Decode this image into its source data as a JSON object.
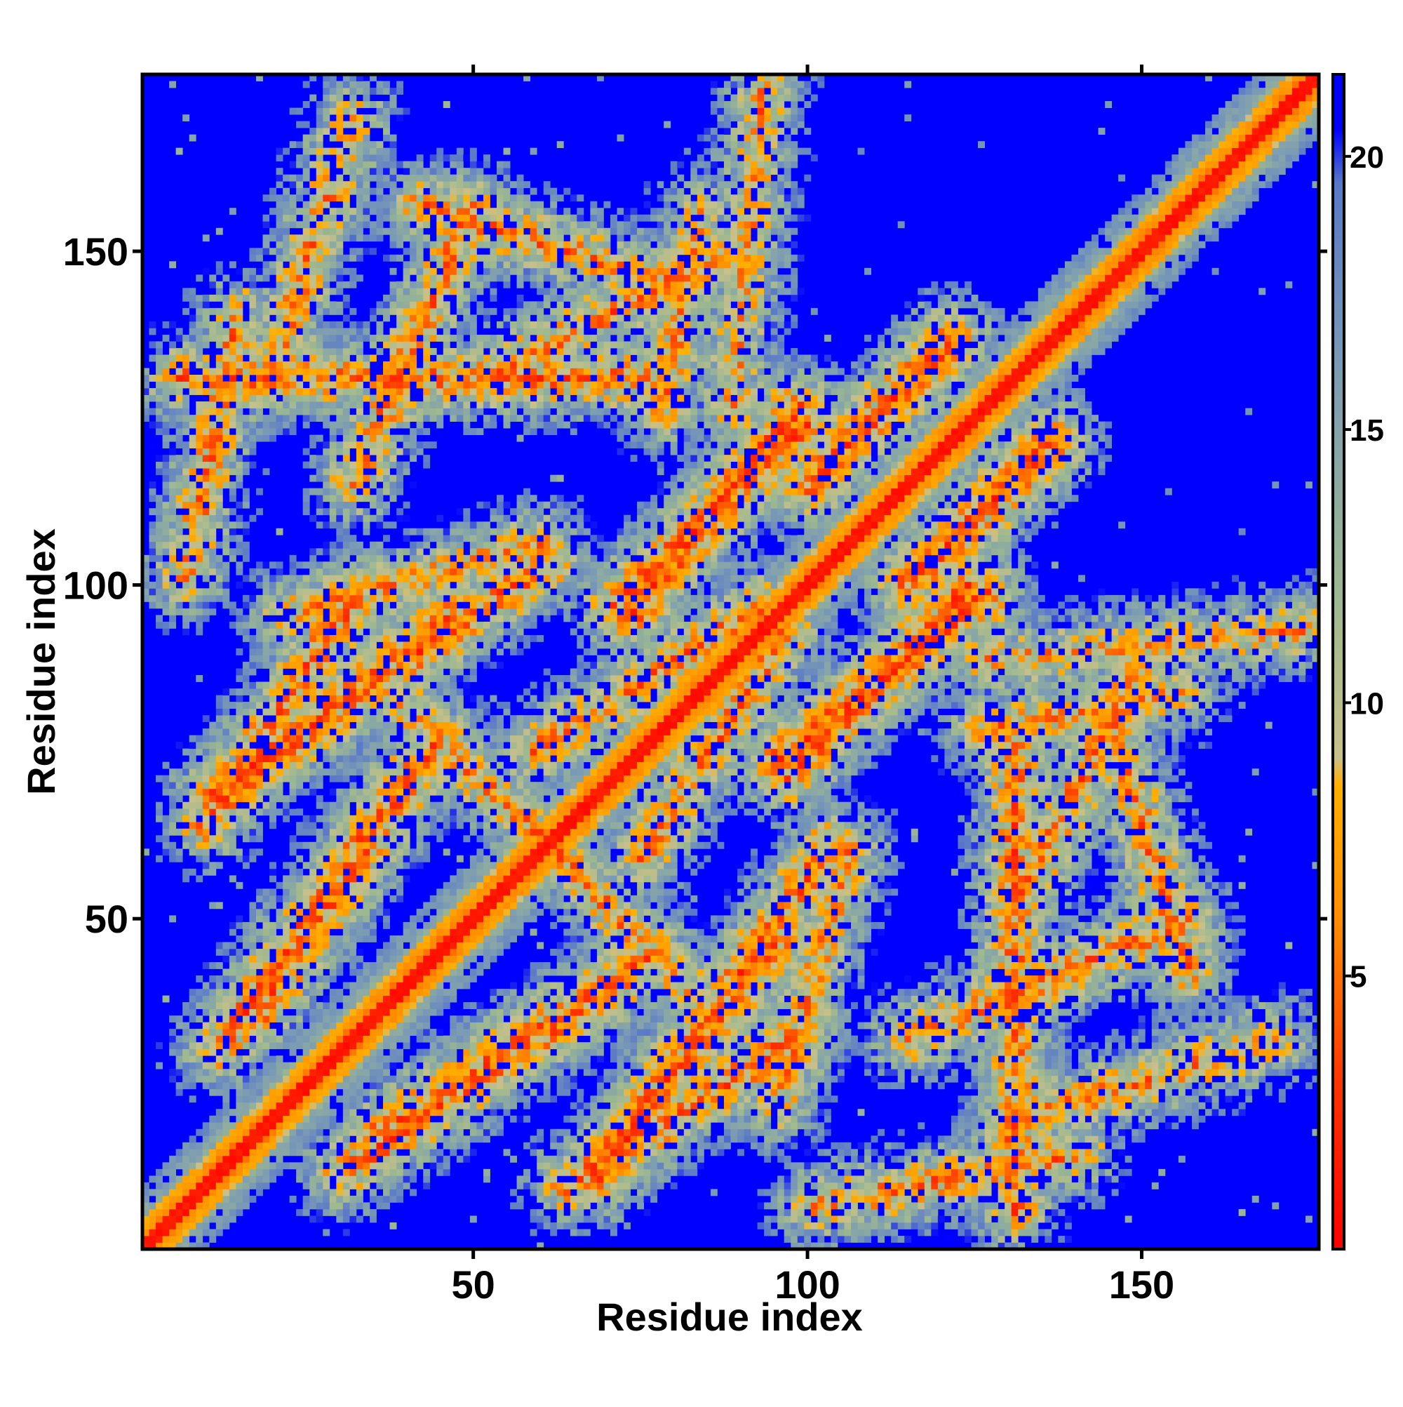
{
  "chart_data": {
    "type": "heatmap",
    "title": "",
    "xlabel": "Residue index",
    "ylabel": "Residue index",
    "x_range": [
      1,
      176
    ],
    "y_range": [
      1,
      176
    ],
    "x_ticks": [
      50,
      100,
      150
    ],
    "x_tick_labels": [
      "50",
      "100",
      "150"
    ],
    "y_ticks": [
      50,
      100,
      150
    ],
    "y_tick_labels": [
      "50",
      "100",
      "150"
    ],
    "grid": false,
    "colorbar": {
      "range": [
        0,
        21.5
      ],
      "ticks": [
        5,
        10,
        15,
        20
      ],
      "tick_labels": [
        "5",
        "10",
        "15",
        "20"
      ],
      "stops": [
        {
          "value": 0,
          "color": "#ff0000"
        },
        {
          "value": 3,
          "color": "#ff3300"
        },
        {
          "value": 6,
          "color": "#ff8c00"
        },
        {
          "value": 8.5,
          "color": "#ffb000"
        },
        {
          "value": 9,
          "color": "#c8c08a"
        },
        {
          "value": 12,
          "color": "#9cb890"
        },
        {
          "value": 16,
          "color": "#7c9cb4"
        },
        {
          "value": 19.5,
          "color": "#5a78c8"
        },
        {
          "value": 20.5,
          "color": "#0000ff"
        }
      ]
    },
    "matrix_description": "Symmetric residue-residue distance map with a red diagonal band (near-zero distance) and off-diagonal contact regions in orange/green, background blue (>20).",
    "contact_features": [
      {
        "center": [
          40,
          130
        ],
        "length": 70,
        "angle": 0.0,
        "strength": 0.8
      },
      {
        "center": [
          35,
          85
        ],
        "length": 60,
        "angle": 0.6,
        "strength": 0.85
      },
      {
        "center": [
          85,
          110
        ],
        "length": 40,
        "angle": 0.9,
        "strength": 0.9
      },
      {
        "center": [
          110,
          125
        ],
        "length": 30,
        "angle": 0.8,
        "strength": 0.9
      },
      {
        "center": [
          60,
          150
        ],
        "length": 40,
        "angle": -0.3,
        "strength": 0.7
      },
      {
        "center": [
          80,
          140
        ],
        "length": 30,
        "angle": 1.4,
        "strength": 0.6
      },
      {
        "center": [
          110,
          85
        ],
        "length": 40,
        "angle": 0.8,
        "strength": 0.9
      },
      {
        "center": [
          125,
          110
        ],
        "length": 30,
        "angle": 0.8,
        "strength": 0.85
      },
      {
        "center": [
          20,
          80
        ],
        "length": 40,
        "angle": 1.0,
        "strength": 0.85
      },
      {
        "center": [
          30,
          55
        ],
        "length": 50,
        "angle": 1.0,
        "strength": 0.8
      },
      {
        "center": [
          50,
          25
        ],
        "length": 50,
        "angle": 0.6,
        "strength": 0.8
      },
      {
        "center": [
          82,
          30
        ],
        "length": 40,
        "angle": 0.9,
        "strength": 0.85
      },
      {
        "center": [
          70,
          50
        ],
        "length": 30,
        "angle": -0.8,
        "strength": 0.7
      },
      {
        "center": [
          135,
          40
        ],
        "length": 45,
        "angle": 0.4,
        "strength": 0.75
      },
      {
        "center": [
          150,
          25
        ],
        "length": 40,
        "angle": 0.3,
        "strength": 0.7
      },
      {
        "center": [
          140,
          70
        ],
        "length": 40,
        "angle": 1.1,
        "strength": 0.7
      },
      {
        "center": [
          120,
          10
        ],
        "length": 40,
        "angle": 0.2,
        "strength": 0.7
      },
      {
        "center": [
          100,
          40
        ],
        "length": 40,
        "angle": 1.3,
        "strength": 0.6
      },
      {
        "center": [
          85,
          75
        ],
        "length": 40,
        "angle": 1.0,
        "strength": 0.7
      },
      {
        "center": [
          150,
          90
        ],
        "length": 50,
        "angle": 0.1,
        "strength": 0.55
      }
    ]
  }
}
